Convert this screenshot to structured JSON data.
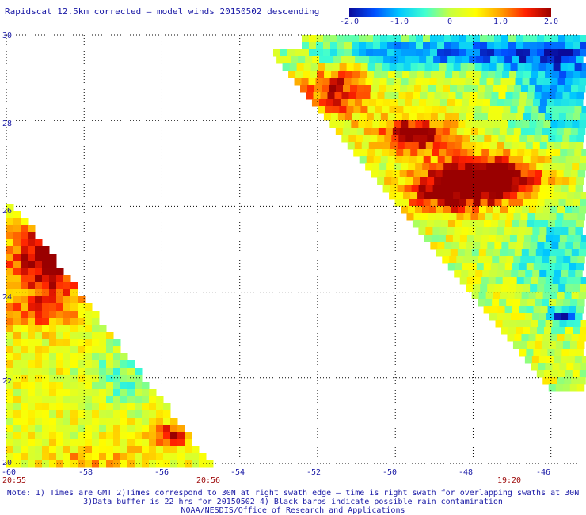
{
  "header": {
    "title": "Rapidscat 12.5km corrected – model winds 20150502 descending"
  },
  "colorbar": {
    "ticks": [
      "-2.0",
      "-1.0",
      "0",
      "1.0",
      "2.0"
    ],
    "values": [
      -2.0,
      -1.0,
      0,
      1.0,
      2.0
    ],
    "colors": [
      "#0a0a9a",
      "#0050ff",
      "#00c8ff",
      "#40ffd0",
      "#c8ff40",
      "#ffff00",
      "#ffa000",
      "#ff2000",
      "#9a0000"
    ]
  },
  "map": {
    "lat_labels": [
      "30",
      "28",
      "26",
      "24",
      "22",
      "20"
    ],
    "lat_values": [
      30,
      28,
      26,
      24,
      22,
      20
    ],
    "lon_labels": [
      "-60",
      "-58",
      "-56",
      "-54",
      "-52",
      "-50",
      "-48",
      "-46"
    ],
    "lon_values": [
      -60,
      -58,
      -56,
      -54,
      -52,
      -50,
      -48,
      -46
    ],
    "lon_range": [
      -60,
      -45.2
    ],
    "lat_range": [
      20,
      30
    ],
    "grid": true
  },
  "swath_times": [
    {
      "label": "20:55",
      "lon": -60
    },
    {
      "label": "20:56",
      "lon": -55.4
    },
    {
      "label": "19:20",
      "lon": -47.1
    }
  ],
  "notes": [
    "Note: 1) Times are GMT 2)Times correspond to 30N at right swath edge – time is right swath for overlapping swaths at 30N",
    "3)Data buffer is 22 hrs for 20150502 4) Black barbs indicate possible rain contamination",
    "NOAA/NESDIS/Office of Research and Applications"
  ]
}
